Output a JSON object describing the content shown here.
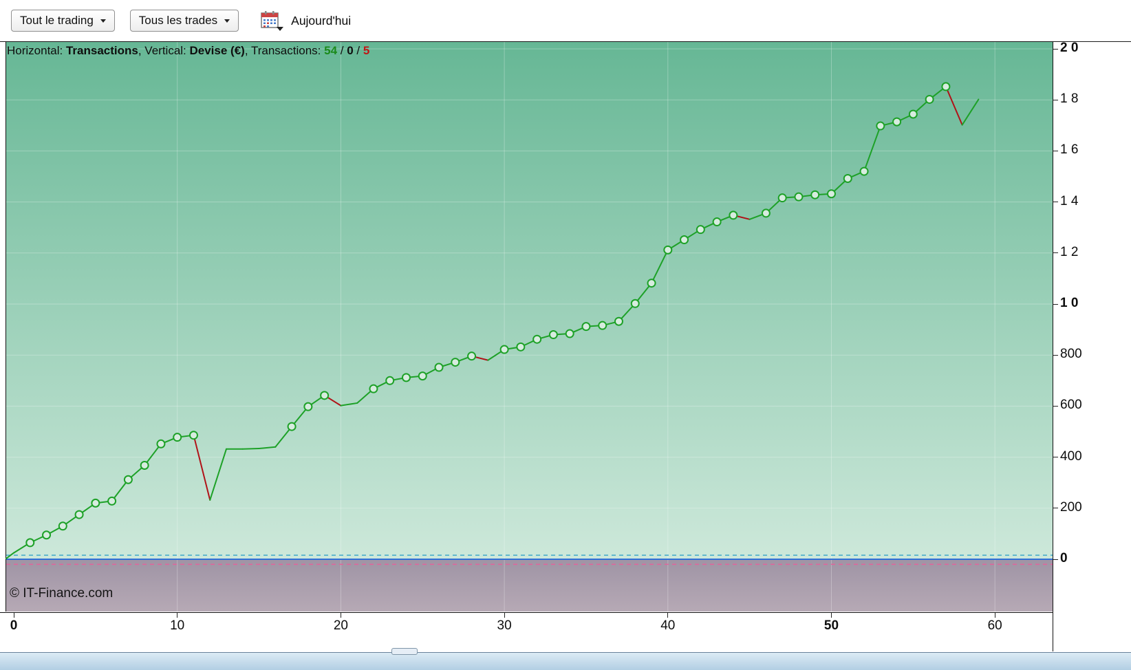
{
  "toolbar": {
    "period_dropdown": "Tout le trading",
    "trades_dropdown": "Tous les trades",
    "calendar_icon": "calendar-icon",
    "today_label": "Aujourd'hui"
  },
  "info_bar": {
    "horizontal_label": "Horizontal: ",
    "horizontal_value": "Transactions",
    "vertical_label": ", Vertical: ",
    "vertical_value": "Devise (€)",
    "transactions_label": ", Transactions: ",
    "wins": "54",
    "sep1": " / ",
    "neutral": "0",
    "sep2": " / ",
    "losses": "5"
  },
  "footer": {
    "copyright": "© IT-Finance.com"
  },
  "chart_data": {
    "type": "line",
    "title": "",
    "xlabel": "Transactions",
    "ylabel": "Devise (€)",
    "xlim": [
      0,
      63.5
    ],
    "ylim": [
      -205,
      2000
    ],
    "grid": true,
    "legend": "none",
    "x_ticks": [
      {
        "value": 0,
        "label": "0",
        "bold": true
      },
      {
        "value": 10,
        "label": "10",
        "bold": false
      },
      {
        "value": 20,
        "label": "20",
        "bold": false
      },
      {
        "value": 30,
        "label": "30",
        "bold": false
      },
      {
        "value": 40,
        "label": "40",
        "bold": false
      },
      {
        "value": 50,
        "label": "50",
        "bold": true
      },
      {
        "value": 60,
        "label": "60",
        "bold": false
      }
    ],
    "y_ticks": [
      {
        "value": 2000,
        "label": "2 0",
        "bold": true
      },
      {
        "value": 1800,
        "label": "1 8",
        "bold": false
      },
      {
        "value": 1600,
        "label": "1 6",
        "bold": false
      },
      {
        "value": 1400,
        "label": "1 4",
        "bold": false
      },
      {
        "value": 1200,
        "label": "1 2",
        "bold": false
      },
      {
        "value": 1000,
        "label": "1 0",
        "bold": true
      },
      {
        "value": 800,
        "label": "800",
        "bold": false
      },
      {
        "value": 600,
        "label": "600",
        "bold": false
      },
      {
        "value": 400,
        "label": "400",
        "bold": false
      },
      {
        "value": 200,
        "label": "200",
        "bold": false
      },
      {
        "value": 0,
        "label": "0",
        "bold": true
      }
    ],
    "x": [
      0,
      1,
      2,
      3,
      4,
      5,
      6,
      7,
      8,
      9,
      10,
      11,
      12,
      13,
      14,
      15,
      16,
      17,
      18,
      19,
      20,
      21,
      22,
      23,
      24,
      25,
      26,
      27,
      28,
      29,
      30,
      31,
      32,
      33,
      34,
      35,
      36,
      37,
      38,
      39,
      40,
      41,
      42,
      43,
      44,
      45,
      46,
      47,
      48,
      49,
      50,
      51,
      52,
      53,
      54,
      55,
      56,
      57,
      58,
      59
    ],
    "values": [
      25,
      65,
      95,
      130,
      175,
      220,
      228,
      312,
      368,
      452,
      478,
      486,
      232,
      432,
      432,
      434,
      440,
      520,
      598,
      642,
      602,
      612,
      668,
      700,
      712,
      718,
      752,
      772,
      796,
      780,
      822,
      832,
      862,
      880,
      884,
      912,
      916,
      932,
      1002,
      1082,
      1212,
      1252,
      1292,
      1322,
      1348,
      1332,
      1356,
      1416,
      1420,
      1428,
      1432,
      1492,
      1520,
      1698,
      1714,
      1744,
      1802,
      1852,
      1702,
      1802
    ],
    "no_marker_indices": [
      0,
      12,
      13,
      14,
      15,
      16,
      20,
      21,
      29,
      45,
      58,
      59
    ],
    "counts": {
      "winning": 54,
      "neutral": 0,
      "losing": 5
    },
    "colors": {
      "bg_top": "#66b795",
      "bg_bottom": "#cde8da",
      "below_zero_top": "#9f94a5",
      "below_zero_bottom": "#b6a9b5",
      "grid": "rgba(255,255,255,0.28)",
      "win_line": "#1da127",
      "loss_line": "#b01218",
      "marker_fill": "#d7ecdf",
      "zero_line": "#2f6fd6",
      "dashed_upper": "#3fa8c9",
      "dashed_lower": "#e2639b",
      "wins_text": "#1a8a1a",
      "losses_text": "#c01515"
    }
  }
}
